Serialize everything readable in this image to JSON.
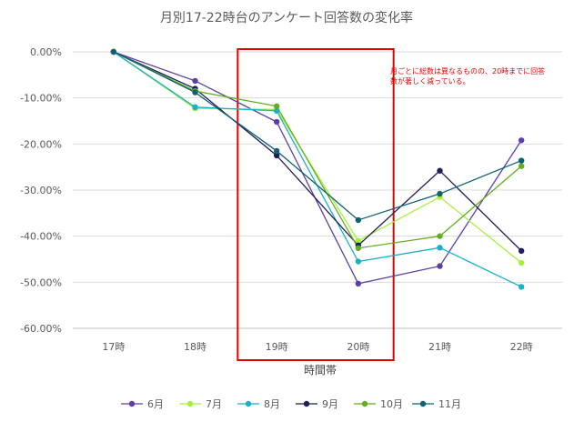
{
  "chart_data": {
    "type": "line",
    "title": "月別17-22時台のアンケート回答数の変化率",
    "xlabel": "時間帯",
    "ylabel": "",
    "categories": [
      "17時",
      "18時",
      "19時",
      "20時",
      "21時",
      "22時"
    ],
    "y_ticks": [
      "0.00%",
      "-10.00%",
      "-20.00%",
      "-30.00%",
      "-40.00%",
      "-50.00%",
      "-60.00%"
    ],
    "ylim": [
      -0.6,
      0
    ],
    "grid": true,
    "legend_position": "bottom",
    "series": [
      {
        "name": "6月",
        "color": "#5b3fa5",
        "values": [
          0,
          -0.063,
          -0.152,
          -0.503,
          -0.465,
          -0.192
        ]
      },
      {
        "name": "7月",
        "color": "#a6f03c",
        "values": [
          0,
          -0.123,
          -0.125,
          -0.41,
          -0.315,
          -0.458
        ]
      },
      {
        "name": "8月",
        "color": "#1ab0c8",
        "values": [
          0,
          -0.12,
          -0.128,
          -0.455,
          -0.425,
          -0.51
        ]
      },
      {
        "name": "9月",
        "color": "#1f1d5a",
        "values": [
          0,
          -0.08,
          -0.225,
          -0.42,
          -0.258,
          -0.432
        ]
      },
      {
        "name": "10月",
        "color": "#62ae1e",
        "values": [
          0,
          -0.085,
          -0.118,
          -0.426,
          -0.4,
          -0.248
        ]
      },
      {
        "name": "11月",
        "color": "#0f6273",
        "values": [
          0,
          -0.088,
          -0.215,
          -0.365,
          -0.308,
          -0.236
        ]
      }
    ],
    "annotation": {
      "lines": [
        "月ごとに総数は異なるものの、20時までに回答",
        "数が著しく減っている。"
      ],
      "color": "#e00000"
    },
    "highlight": {
      "from_category": "19時",
      "to_category": "20時",
      "color": "#e00000"
    }
  }
}
